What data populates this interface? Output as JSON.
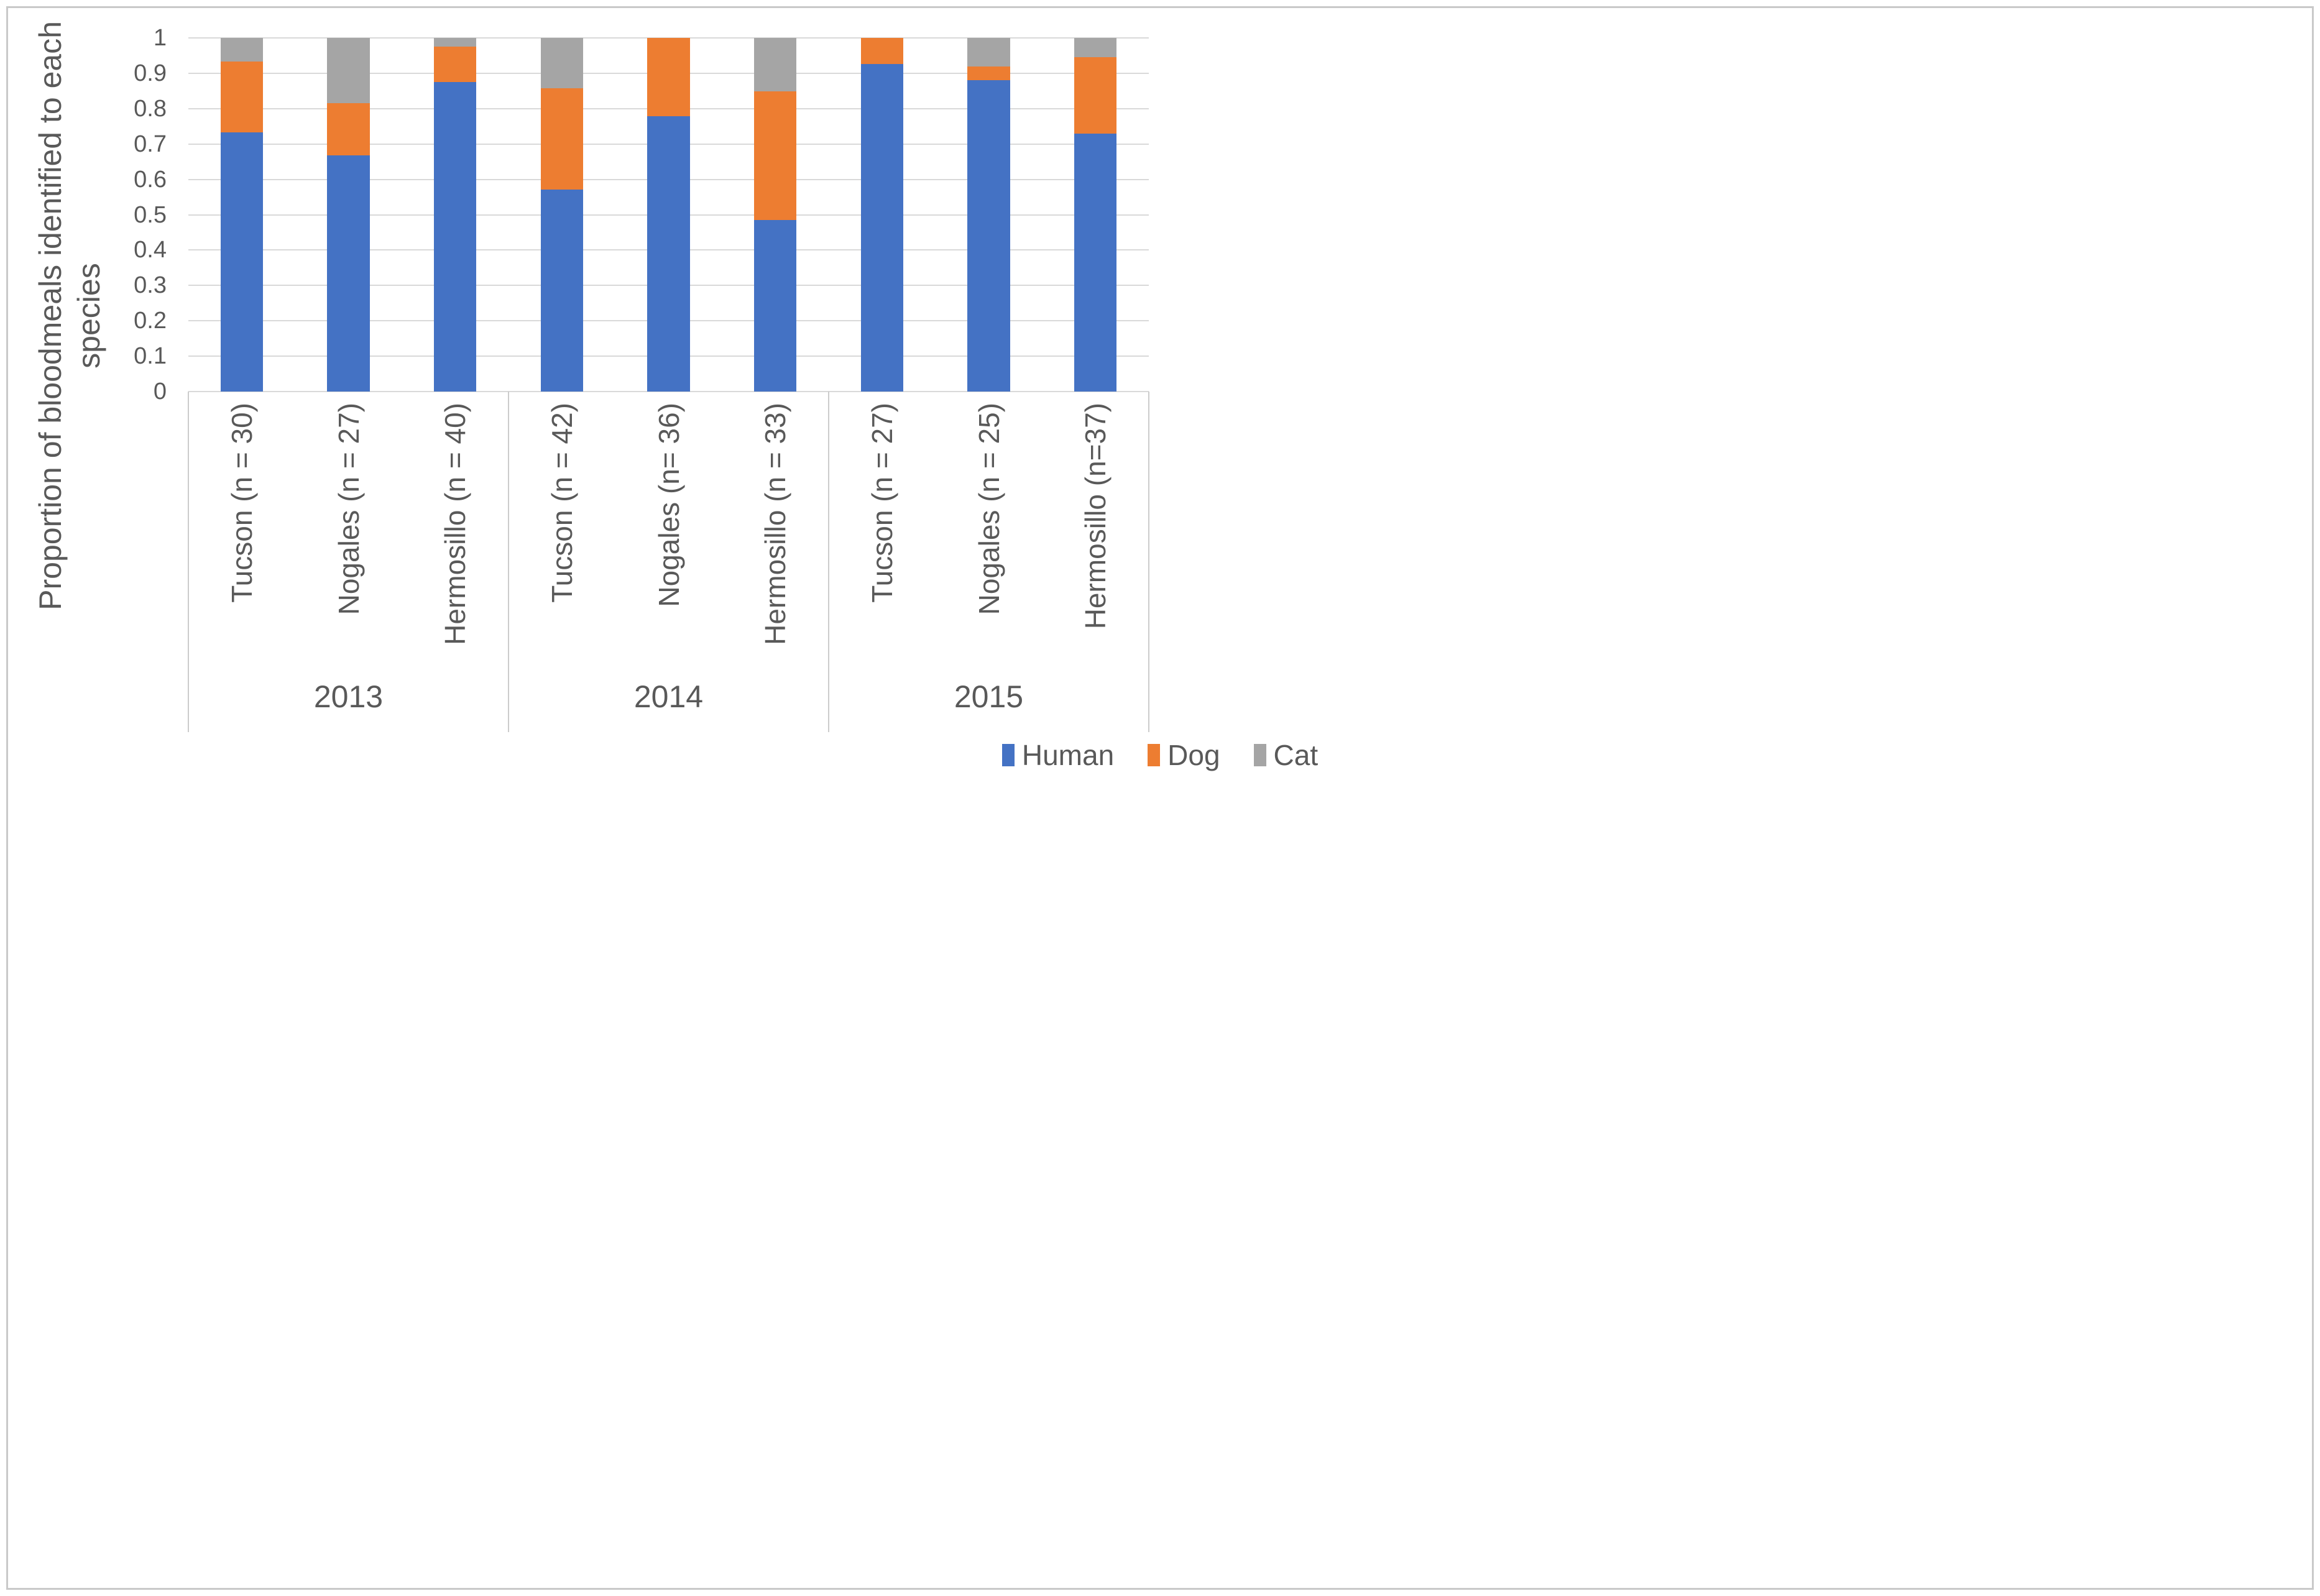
{
  "chart_data": {
    "type": "bar",
    "stacked": true,
    "orientation": "vertical",
    "ylabel": "Proportion of bloodmeals identified to each species",
    "ylabel_lines": [
      "Proportion of bloodmeals identified to each",
      "species"
    ],
    "ylim": [
      0,
      1
    ],
    "ytick_step": 0.1,
    "yticks": [
      "0",
      "0.1",
      "0.2",
      "0.3",
      "0.4",
      "0.5",
      "0.6",
      "0.7",
      "0.8",
      "0.9",
      "1"
    ],
    "grid": true,
    "legend_position": "bottom",
    "categories": [
      "Tucson (n = 30)",
      "Nogales (n = 27)",
      "Hermosillo (n = 40)",
      "Tucson (n = 42)",
      "Nogales (n= 36)",
      "Hermosillo (n = 33)",
      "Tucson (n = 27)",
      "Nogales (n = 25)",
      "Hermosillo (n=37)"
    ],
    "year_groups": [
      {
        "label": "2013",
        "count": 3
      },
      {
        "label": "2014",
        "count": 3
      },
      {
        "label": "2015",
        "count": 3
      }
    ],
    "series": [
      {
        "name": "Human",
        "color": "#4472C4",
        "values": [
          0.733,
          0.667,
          0.875,
          0.571,
          0.778,
          0.485,
          0.926,
          0.88,
          0.73
        ]
      },
      {
        "name": "Dog",
        "color": "#ED7D31",
        "values": [
          0.2,
          0.148,
          0.1,
          0.286,
          0.222,
          0.364,
          0.074,
          0.04,
          0.216
        ]
      },
      {
        "name": "Cat",
        "color": "#A5A5A5",
        "values": [
          0.067,
          0.185,
          0.025,
          0.143,
          0.0,
          0.151,
          0.0,
          0.08,
          0.054
        ]
      }
    ],
    "colors": {
      "grid": "#D9D9D9",
      "divider": "#CCCCCC",
      "text": "#595959",
      "border": "#C9C9C9",
      "background": "#FFFFFF"
    },
    "bar_width_fraction": 0.4
  }
}
